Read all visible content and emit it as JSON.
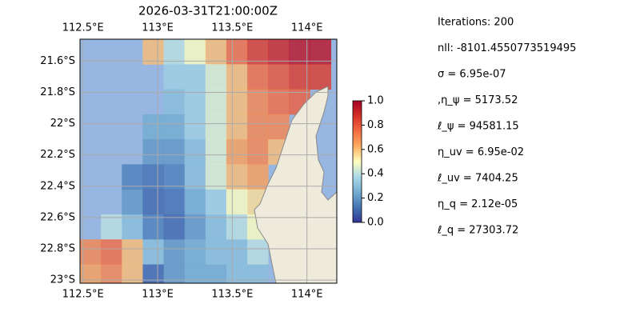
{
  "chart_data": {
    "type": "map",
    "title": "2026-03-31T21:00:00Z",
    "xlim": [
      112.48,
      114.2
    ],
    "ylim": [
      -23.02,
      -21.46
    ],
    "xticks": [
      {
        "value": 112.5,
        "label": "112.5°E"
      },
      {
        "value": 113,
        "label": "113°E"
      },
      {
        "value": 113.5,
        "label": "113.5°E"
      },
      {
        "value": 114,
        "label": "114°E"
      }
    ],
    "yticks": [
      {
        "value": -21.6,
        "label": "21.6°S"
      },
      {
        "value": -21.8,
        "label": "21.8°S"
      },
      {
        "value": -22,
        "label": "22°S"
      },
      {
        "value": -22.2,
        "label": "22.2°S"
      },
      {
        "value": -22.4,
        "label": "22.4°S"
      },
      {
        "value": -22.6,
        "label": "22.6°S"
      },
      {
        "value": -22.8,
        "label": "22.8°S"
      },
      {
        "value": -23,
        "label": "23°S"
      }
    ],
    "grid": true,
    "field": {
      "lon": [
        112.48,
        112.62,
        112.76,
        112.9,
        113.04,
        113.18,
        113.32,
        113.46,
        113.6,
        113.74,
        113.88,
        114.02,
        114.16
      ],
      "lat": [
        -21.46,
        -21.62,
        -21.78,
        -21.94,
        -22.1,
        -22.26,
        -22.42,
        -22.58,
        -22.74,
        -22.9,
        -23.02
      ],
      "values": [
        [
          null,
          null,
          null,
          0.6,
          0.4,
          0.5,
          0.6,
          0.75,
          0.85,
          0.9,
          0.95,
          0.95
        ],
        [
          null,
          null,
          null,
          null,
          0.35,
          0.35,
          0.45,
          0.6,
          0.75,
          0.8,
          0.85,
          0.85
        ],
        [
          null,
          null,
          null,
          null,
          0.3,
          0.35,
          0.45,
          0.6,
          0.7,
          0.75,
          0.78,
          null
        ],
        [
          null,
          null,
          null,
          0.25,
          0.25,
          0.35,
          0.45,
          0.6,
          0.7,
          0.7,
          null,
          null
        ],
        [
          null,
          null,
          null,
          0.2,
          0.2,
          0.3,
          0.45,
          0.65,
          0.7,
          0.6,
          null,
          null
        ],
        [
          null,
          null,
          0.15,
          0.12,
          0.15,
          0.3,
          0.45,
          0.6,
          0.65,
          null,
          null,
          null
        ],
        [
          null,
          null,
          0.2,
          0.1,
          0.12,
          0.25,
          0.35,
          0.5,
          0.55,
          null,
          null,
          null
        ],
        [
          null,
          0.4,
          0.3,
          0.15,
          0.1,
          0.2,
          0.3,
          0.4,
          0.5,
          null,
          null,
          null
        ],
        [
          0.7,
          0.75,
          0.6,
          0.3,
          0.2,
          0.25,
          0.3,
          0.3,
          0.4,
          null,
          null,
          null
        ],
        [
          0.65,
          0.7,
          0.6,
          0.1,
          0.2,
          0.25,
          0.25,
          0.3,
          0.3,
          null,
          null,
          null
        ]
      ]
    },
    "colorbar": {
      "lim": [
        0,
        1
      ],
      "colors": [
        "#313695",
        "#4575b4",
        "#74add1",
        "#abd9e9",
        "#ffffbf",
        "#fdae61",
        "#f46d43",
        "#d73027",
        "#a50026"
      ],
      "ticks": [
        {
          "value": 0,
          "label": "0.0"
        },
        {
          "value": 0.2,
          "label": "0.2"
        },
        {
          "value": 0.4,
          "label": "0.4"
        },
        {
          "value": 0.6,
          "label": "0.6"
        },
        {
          "value": 0.8,
          "label": "0.8"
        },
        {
          "value": 1,
          "label": "1.0"
        }
      ]
    },
    "info": [
      "Iterations: 200",
      "nll: -8101.4550773519495",
      "σ = 6.95e-07",
      ",η_ψ = 5173.52",
      "ℓ_ψ = 94581.15",
      "η_uv = 6.95e-02",
      "ℓ_uv = 7404.25",
      "η_q = 2.12e-05",
      "ℓ_q = 27303.72"
    ]
  }
}
